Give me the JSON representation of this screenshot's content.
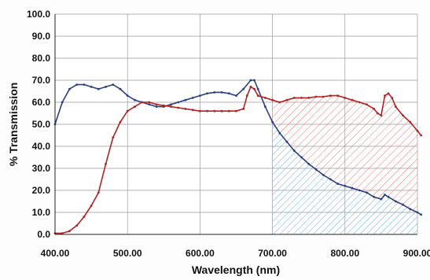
{
  "chart_data": {
    "type": "line",
    "title": "",
    "xlabel": "Wavelength (nm)",
    "ylabel": "% Transmission",
    "xlim": [
      400,
      900
    ],
    "ylim": [
      0,
      100
    ],
    "x_ticks": [
      "400.00",
      "500.00",
      "600.00",
      "700.00",
      "800.00",
      "900.00"
    ],
    "y_ticks": [
      "0.0",
      "10.0",
      "20.0",
      "30.0",
      "40.0",
      "50.0",
      "60.0",
      "70.0",
      "80.0",
      "90.0",
      "100.0"
    ],
    "grid": true,
    "legend": "none",
    "series": [
      {
        "color": "#2a3f86",
        "points": [
          [
            400,
            50
          ],
          [
            410,
            60
          ],
          [
            420,
            66
          ],
          [
            430,
            68
          ],
          [
            440,
            68
          ],
          [
            450,
            67
          ],
          [
            460,
            66
          ],
          [
            470,
            67
          ],
          [
            480,
            68
          ],
          [
            490,
            66
          ],
          [
            500,
            63
          ],
          [
            510,
            61
          ],
          [
            520,
            60
          ],
          [
            530,
            59
          ],
          [
            540,
            58
          ],
          [
            550,
            58
          ],
          [
            560,
            59
          ],
          [
            570,
            60
          ],
          [
            580,
            61
          ],
          [
            590,
            62
          ],
          [
            600,
            63
          ],
          [
            610,
            64
          ],
          [
            620,
            64.5
          ],
          [
            630,
            64.5
          ],
          [
            640,
            64
          ],
          [
            650,
            63
          ],
          [
            660,
            66
          ],
          [
            670,
            70
          ],
          [
            675,
            70
          ],
          [
            680,
            66
          ],
          [
            690,
            58
          ],
          [
            700,
            51
          ],
          [
            710,
            46
          ],
          [
            720,
            42
          ],
          [
            730,
            38
          ],
          [
            740,
            35
          ],
          [
            750,
            32
          ],
          [
            760,
            29.5
          ],
          [
            770,
            27
          ],
          [
            780,
            25
          ],
          [
            790,
            23
          ],
          [
            800,
            22
          ],
          [
            810,
            21
          ],
          [
            820,
            20
          ],
          [
            830,
            19
          ],
          [
            840,
            17
          ],
          [
            850,
            16
          ],
          [
            855,
            18
          ],
          [
            860,
            17
          ],
          [
            870,
            15
          ],
          [
            880,
            13.5
          ],
          [
            890,
            11.5
          ],
          [
            900,
            10
          ],
          [
            905,
            9
          ]
        ]
      },
      {
        "color": "#b52020",
        "points": [
          [
            400,
            0.5
          ],
          [
            410,
            0.5
          ],
          [
            420,
            1.5
          ],
          [
            430,
            4
          ],
          [
            440,
            8
          ],
          [
            450,
            13
          ],
          [
            460,
            19
          ],
          [
            470,
            32
          ],
          [
            480,
            44
          ],
          [
            490,
            51
          ],
          [
            500,
            56
          ],
          [
            510,
            58
          ],
          [
            520,
            60
          ],
          [
            530,
            60
          ],
          [
            540,
            59
          ],
          [
            550,
            58.5
          ],
          [
            560,
            58
          ],
          [
            570,
            57.5
          ],
          [
            580,
            57
          ],
          [
            590,
            56.5
          ],
          [
            600,
            56
          ],
          [
            610,
            56
          ],
          [
            620,
            56
          ],
          [
            630,
            56
          ],
          [
            640,
            56
          ],
          [
            650,
            56
          ],
          [
            660,
            57
          ],
          [
            665,
            63
          ],
          [
            670,
            67
          ],
          [
            675,
            66
          ],
          [
            680,
            63
          ],
          [
            690,
            62
          ],
          [
            700,
            61
          ],
          [
            710,
            60
          ],
          [
            720,
            61
          ],
          [
            730,
            62
          ],
          [
            740,
            62
          ],
          [
            750,
            62
          ],
          [
            760,
            62.5
          ],
          [
            770,
            62.5
          ],
          [
            780,
            63
          ],
          [
            790,
            63
          ],
          [
            800,
            62
          ],
          [
            810,
            61
          ],
          [
            820,
            60
          ],
          [
            830,
            59
          ],
          [
            840,
            57
          ],
          [
            845,
            55
          ],
          [
            850,
            54
          ],
          [
            855,
            63
          ],
          [
            860,
            64
          ],
          [
            865,
            62
          ],
          [
            870,
            58
          ],
          [
            880,
            54
          ],
          [
            890,
            51
          ],
          [
            900,
            47
          ],
          [
            905,
            45
          ]
        ]
      }
    ],
    "hatch": {
      "x_start": 700,
      "blue_color": "#7fb6d2",
      "red_color": "#e07a7a"
    }
  }
}
